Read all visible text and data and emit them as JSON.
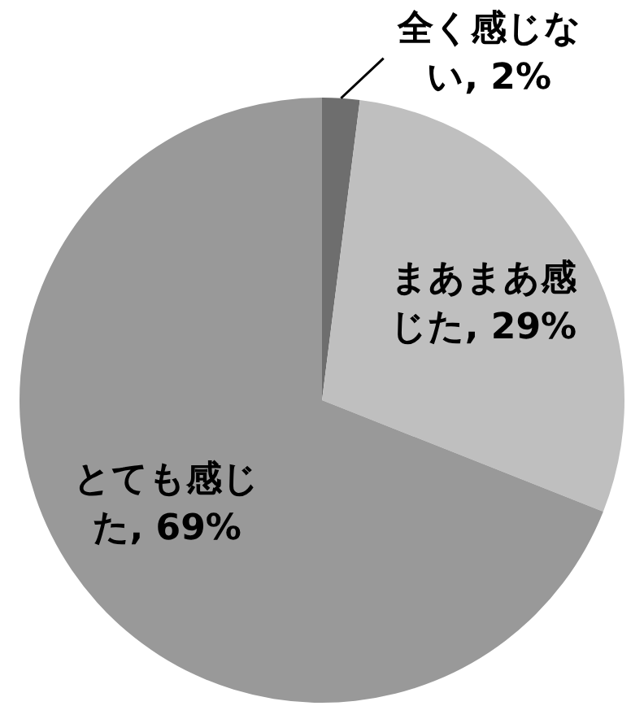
{
  "chart_data": {
    "type": "pie",
    "categories": [
      "全く感じない",
      "まあまあ感じた",
      "とても感じた"
    ],
    "values": [
      2,
      29,
      69
    ],
    "colors": [
      "#6e6e6e",
      "#bfbfbf",
      "#999999"
    ],
    "value_labels": [
      "2%",
      "29%",
      "69%"
    ],
    "legend": false
  }
}
